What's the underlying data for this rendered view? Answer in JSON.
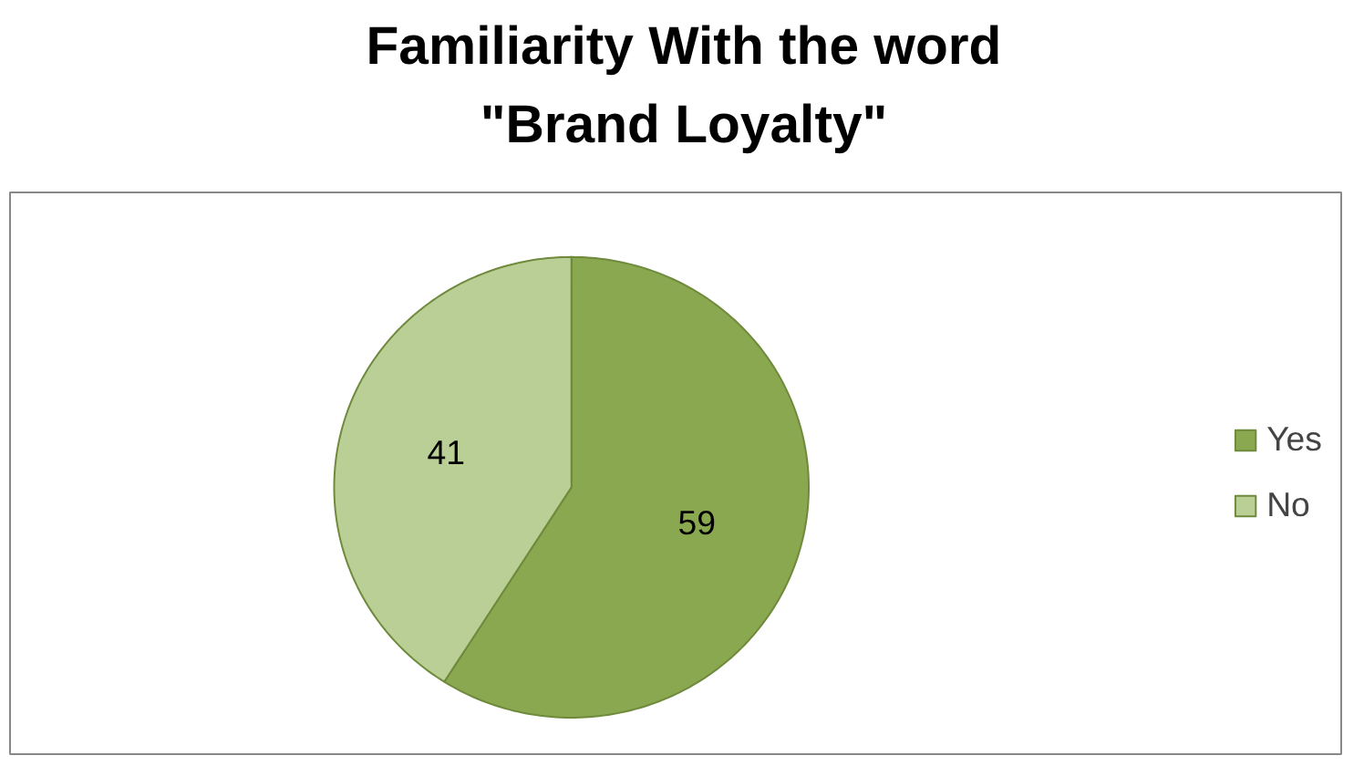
{
  "chart_data": {
    "type": "pie",
    "title": "Familiarity With the word \"Brand Loyalty\"",
    "categories": [
      "Yes",
      "No"
    ],
    "values": [
      59,
      41
    ],
    "colors": [
      "#8aa84f",
      "#b9cf95"
    ],
    "data_labels": true,
    "legend": "right"
  }
}
